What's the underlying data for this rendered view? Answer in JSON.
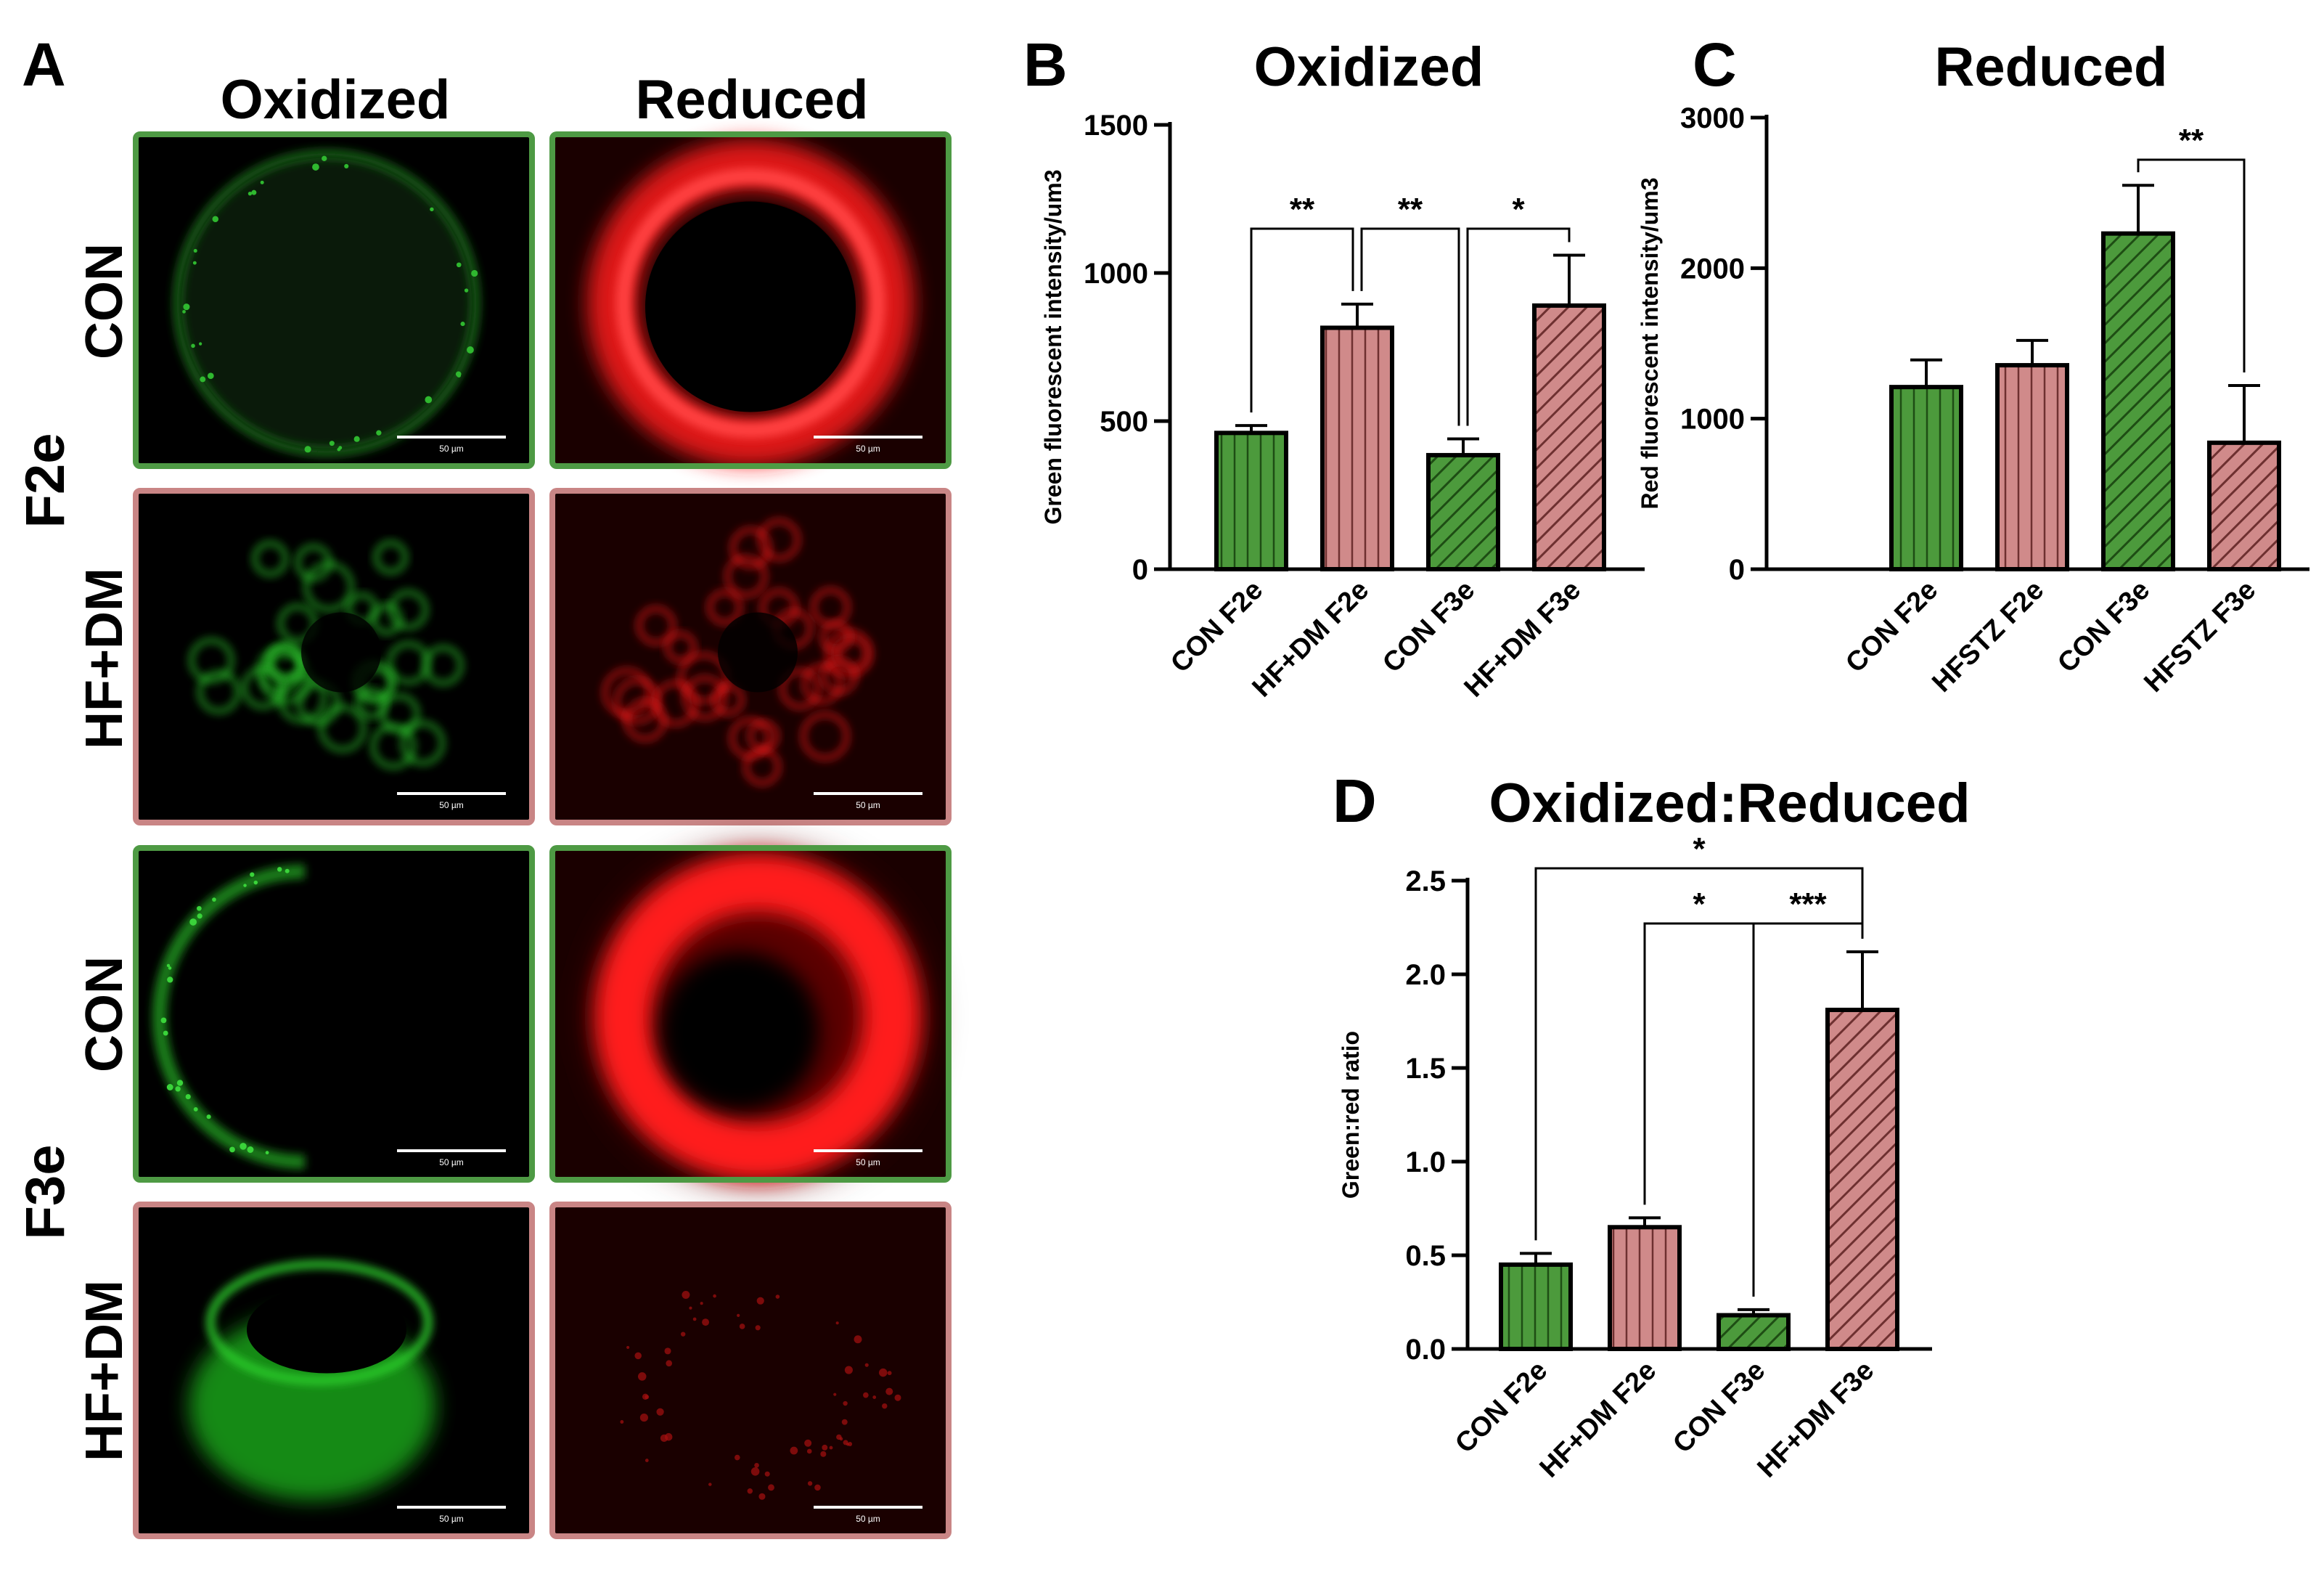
{
  "panel_a": {
    "letter": "A",
    "col_headers": [
      "Oxidized",
      "Reduced"
    ],
    "row_labels": [
      "CON",
      "HF+DM",
      "CON",
      "HF+DM"
    ],
    "group_labels": [
      "F2e",
      "F3e"
    ],
    "scale_label": "50 µm",
    "border_colors": {
      "con": "#4e9a44",
      "hfdm": "#c98585"
    },
    "images": [
      {
        "row": 0,
        "col": 0,
        "channel": "green",
        "pattern": "dim-ring"
      },
      {
        "row": 0,
        "col": 1,
        "channel": "red",
        "pattern": "bright-ring"
      },
      {
        "row": 1,
        "col": 0,
        "channel": "green",
        "pattern": "cell-cluster"
      },
      {
        "row": 1,
        "col": 1,
        "channel": "red",
        "pattern": "cell-cluster"
      },
      {
        "row": 2,
        "col": 0,
        "channel": "green",
        "pattern": "dim-crescent"
      },
      {
        "row": 2,
        "col": 1,
        "channel": "red",
        "pattern": "bright-ring-hazy"
      },
      {
        "row": 3,
        "col": 0,
        "channel": "green",
        "pattern": "bright-cluster"
      },
      {
        "row": 3,
        "col": 1,
        "channel": "red",
        "pattern": "faint-ring"
      }
    ]
  },
  "colors": {
    "green": "#4c9a3c",
    "pink": "#d08a8a",
    "black": "#000000"
  },
  "chart_data": [
    {
      "id": "B",
      "type": "bar",
      "letter": "B",
      "title": "Oxidized",
      "ylabel": "Green fluorescent intensity/um3",
      "ylim": [
        0,
        1500
      ],
      "yticks": [
        0,
        500,
        1000,
        1500
      ],
      "categories": [
        "CON F2e",
        "HF+DM F2e",
        "CON F3e",
        "HF+DM F3e"
      ],
      "values": [
        460,
        815,
        385,
        890
      ],
      "errors": [
        25,
        80,
        55,
        170
      ],
      "bar_colors": [
        "green",
        "pink",
        "green",
        "pink"
      ],
      "hatch": [
        "vertical",
        "vertical",
        "diagonal",
        "diagonal"
      ],
      "significance": [
        {
          "from": 0,
          "to": 1,
          "label": "**"
        },
        {
          "from": 1,
          "to": 2,
          "label": "**"
        },
        {
          "from": 2,
          "to": 3,
          "label": "*"
        }
      ]
    },
    {
      "id": "C",
      "type": "bar",
      "letter": "C",
      "title": "Reduced",
      "ylabel": "Red fluorescent intensity/um3",
      "ylim": [
        0,
        3000
      ],
      "yticks": [
        0,
        1000,
        2000,
        3000
      ],
      "categories": [
        "CON F2e",
        "HFSTZ F2e",
        "CON F3e",
        "HFSTZ F3e"
      ],
      "values": [
        1210,
        1355,
        2230,
        840
      ],
      "errors": [
        180,
        165,
        320,
        380
      ],
      "bar_colors": [
        "green",
        "pink",
        "green",
        "pink"
      ],
      "hatch": [
        "vertical",
        "vertical",
        "diagonal",
        "diagonal"
      ],
      "significance": [
        {
          "from": 2,
          "to": 3,
          "label": "**"
        }
      ]
    },
    {
      "id": "D",
      "type": "bar",
      "letter": "D",
      "title": "Oxidized:Reduced",
      "ylabel": "Green:red ratio",
      "ylim": [
        0,
        2.5
      ],
      "yticks": [
        "0.0",
        "0.5",
        "1.0",
        "1.5",
        "2.0",
        "2.5"
      ],
      "categories": [
        "CON F2e",
        "HF+DM F2e",
        "CON F3e",
        "HF+DM F3e"
      ],
      "values": [
        0.45,
        0.65,
        0.18,
        1.81
      ],
      "errors": [
        0.06,
        0.05,
        0.03,
        0.31
      ],
      "bar_colors": [
        "green",
        "pink",
        "green",
        "pink"
      ],
      "hatch": [
        "vertical",
        "vertical",
        "diagonal",
        "diagonal"
      ],
      "significance": [
        {
          "from": 0,
          "to": 3,
          "label": "*"
        },
        {
          "from": 1,
          "to": 2,
          "label": "*"
        },
        {
          "from": 2,
          "to": 3,
          "label": "***"
        }
      ]
    }
  ]
}
